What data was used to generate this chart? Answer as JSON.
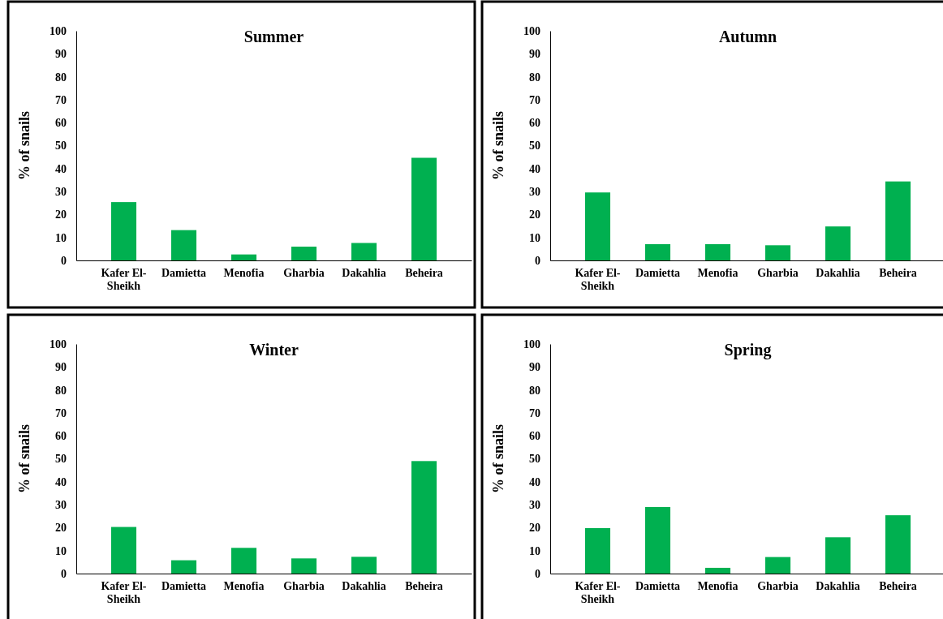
{
  "chart_data": [
    {
      "type": "bar",
      "title": "Summer",
      "ylabel": "% of snails",
      "categories": [
        "Kafer El-Sheikh",
        "Damietta",
        "Menofia",
        "Gharbia",
        "Dakahlia",
        "Beheira"
      ],
      "values": [
        25.4,
        13.2,
        2.6,
        6.0,
        7.6,
        44.7
      ],
      "color": "#00b050",
      "ylim": [
        0,
        100
      ],
      "yticks": [
        0,
        10,
        20,
        30,
        40,
        50,
        60,
        70,
        80,
        90,
        100
      ]
    },
    {
      "type": "bar",
      "title": "Autumn",
      "ylabel": "% of snails",
      "categories": [
        "Kafer El-Sheikh",
        "Damietta",
        "Menofia",
        "Gharbia",
        "Dakahlia",
        "Beheira"
      ],
      "values": [
        29.6,
        7.1,
        7.1,
        6.6,
        14.8,
        34.4
      ],
      "color": "#00b050",
      "ylim": [
        0,
        100
      ],
      "yticks": [
        0,
        10,
        20,
        30,
        40,
        50,
        60,
        70,
        80,
        90,
        100
      ]
    },
    {
      "type": "bar",
      "title": "Winter",
      "ylabel": "% of snails",
      "categories": [
        "Kafer El-Sheikh",
        "Damietta",
        "Menofia",
        "Gharbia",
        "Dakahlia",
        "Beheira"
      ],
      "values": [
        20.3,
        5.8,
        11.2,
        6.6,
        7.3,
        49.0
      ],
      "color": "#00b050",
      "ylim": [
        0,
        100
      ],
      "yticks": [
        0,
        10,
        20,
        30,
        40,
        50,
        60,
        70,
        80,
        90,
        100
      ]
    },
    {
      "type": "bar",
      "title": "Spring",
      "ylabel": "% of snails",
      "categories": [
        "Kafer El-Sheikh",
        "Damietta",
        "Menofia",
        "Gharbia",
        "Dakahlia",
        "Beheira"
      ],
      "values": [
        19.8,
        29.0,
        2.5,
        7.2,
        15.8,
        25.4
      ],
      "color": "#00b050",
      "ylim": [
        0,
        100
      ],
      "yticks": [
        0,
        10,
        20,
        30,
        40,
        50,
        60,
        70,
        80,
        90,
        100
      ]
    }
  ]
}
